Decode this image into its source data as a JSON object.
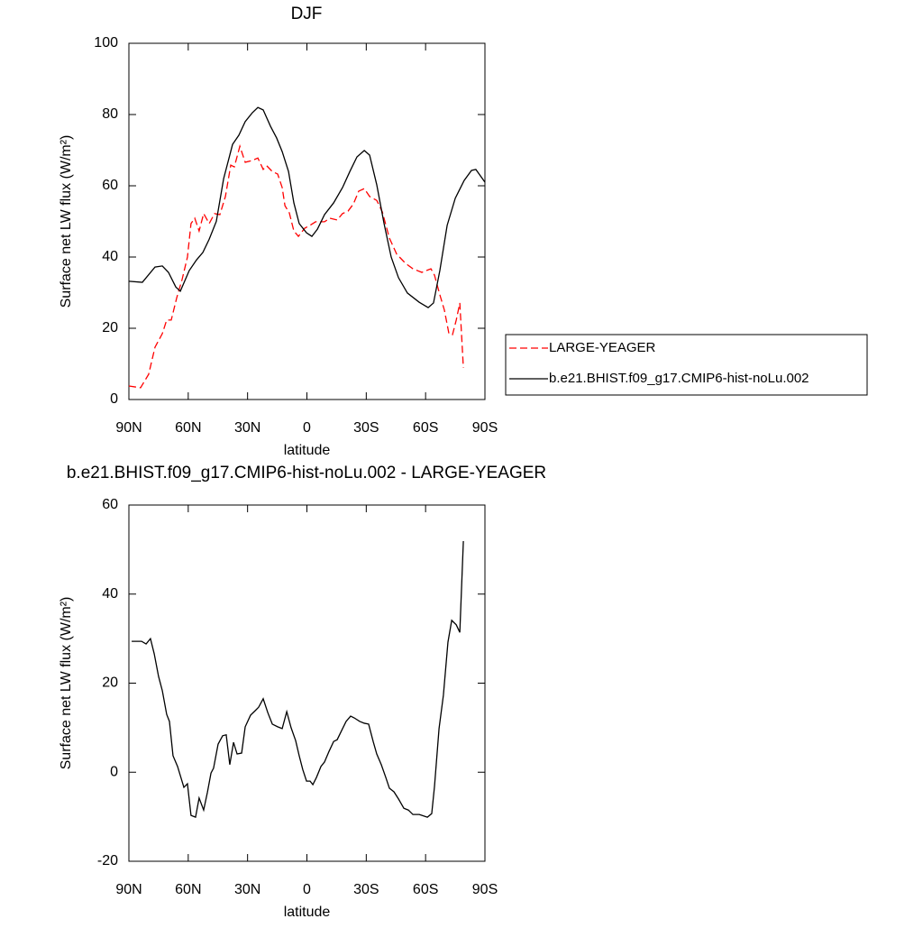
{
  "chart_data": [
    {
      "type": "line",
      "title": "DJF",
      "x_label": "latitude",
      "y_label": "Surface net LW flux (W/m²)",
      "xlim": [
        90,
        -90
      ],
      "xticks": [
        {
          "value": 90,
          "label": "90N"
        },
        {
          "value": 60,
          "label": "60N"
        },
        {
          "value": 30,
          "label": "30N"
        },
        0,
        {
          "value": -30,
          "label": "30S"
        },
        {
          "value": -60,
          "label": "60S"
        },
        {
          "value": -90,
          "label": "90S"
        }
      ],
      "ylim": [
        0,
        100
      ],
      "yticks": [
        0,
        20,
        40,
        60,
        80,
        100
      ],
      "legend": "right",
      "series": [
        {
          "name": "LARGE-YEAGER",
          "color": "#ff0000",
          "style": "dashed",
          "x": [
            90,
            84.1,
            80,
            76.8,
            73.1,
            70.9,
            68.6,
            65.8,
            63.1,
            60.4,
            58.6,
            56.7,
            54.5,
            52.2,
            49.4,
            46.7,
            44,
            41.2,
            38.5,
            36.7,
            33.9,
            31.2,
            27.6,
            24.8,
            22.1,
            20.3,
            17.5,
            14.8,
            12.5,
            11.1,
            8.9,
            6.6,
            4.3,
            1.1,
            -1.6,
            -4.4,
            -8.9,
            -11.6,
            -15.3,
            -18,
            -20.8,
            -23.5,
            -26.2,
            -29,
            -31.7,
            -35.3,
            -38.1,
            -41.7,
            -45.4,
            -49.9,
            -53.6,
            -58.1,
            -62.7,
            -64.5,
            -67.2,
            -69.5,
            -71.8,
            -73.6,
            -75.5,
            -77.3,
            -79.1
          ],
          "values": [
            3.8,
            3.3,
            7.1,
            14.7,
            18.5,
            22.3,
            22.3,
            28.6,
            33.7,
            40,
            49.4,
            50.9,
            47.3,
            52.2,
            49.4,
            52.2,
            51.9,
            57,
            65.8,
            65.3,
            71.1,
            66.6,
            67.1,
            67.8,
            64.6,
            65.6,
            64,
            63.3,
            59.5,
            54.4,
            52.4,
            47.3,
            45.8,
            48.1,
            48.9,
            49.9,
            49.9,
            50.9,
            50.4,
            52.2,
            52.9,
            54.9,
            58.5,
            59.2,
            57,
            55.9,
            52.7,
            45.3,
            40.8,
            38.2,
            36.7,
            35.7,
            36.7,
            34.9,
            29.4,
            25.1,
            18.5,
            18.2,
            22.3,
            27.1,
            8.9
          ]
        },
        {
          "name": "b.e21.BHIST.f09_g17.CMIP6-hist-noLu.002",
          "color": "#000000",
          "style": "solid",
          "x": [
            90,
            83.2,
            76.8,
            73.1,
            70,
            66.3,
            64,
            59.5,
            55.8,
            52.6,
            49.4,
            45.8,
            42.1,
            37.6,
            34.4,
            31.2,
            27.6,
            24.8,
            22.1,
            18.4,
            15.3,
            12.5,
            9.3,
            6.6,
            3.9,
            0.2,
            -2.5,
            -5.3,
            -8.9,
            -13.5,
            -18,
            -21.7,
            -25.3,
            -29,
            -31.7,
            -35.3,
            -39,
            -42.6,
            -46.3,
            -50.8,
            -56.8,
            -61.3,
            -64,
            -67.2,
            -70.9,
            -75,
            -79.5,
            -83.2,
            -85.4,
            -90
          ],
          "values": [
            33.2,
            32.9,
            37.2,
            37.5,
            35.7,
            31.6,
            30.4,
            36.2,
            39.2,
            41.3,
            45,
            50,
            62,
            71.6,
            74.2,
            78,
            80.5,
            82,
            81.3,
            76.7,
            73.4,
            69.6,
            64,
            55.2,
            49.4,
            46.8,
            45.8,
            47.8,
            51.9,
            55.2,
            59.5,
            64,
            68.1,
            69.9,
            68.6,
            60.3,
            49.4,
            40,
            34.2,
            29.9,
            27.3,
            25.8,
            27.1,
            36.2,
            48.9,
            56.5,
            61.5,
            64.3,
            64.6,
            61
          ]
        }
      ]
    },
    {
      "type": "line",
      "title": "b.e21.BHIST.f09_g17.CMIP6-hist-noLu.002 - LARGE-YEAGER",
      "x_label": "latitude",
      "y_label": "Surface net LW flux (W/m²)",
      "xlim": [
        90,
        -90
      ],
      "xticks": [
        {
          "value": 90,
          "label": "90N"
        },
        {
          "value": 60,
          "label": "60N"
        },
        {
          "value": 30,
          "label": "30N"
        },
        0,
        {
          "value": -30,
          "label": "30S"
        },
        {
          "value": -60,
          "label": "60S"
        },
        {
          "value": -90,
          "label": "90S"
        }
      ],
      "ylim": [
        -20,
        60
      ],
      "yticks": [
        -20,
        0,
        20,
        40,
        60
      ],
      "series": [
        {
          "color": "#000000",
          "style": "solid",
          "x": [
            88.6,
            83.6,
            81.3,
            79.1,
            77.2,
            75,
            73.1,
            70.9,
            69.5,
            67.7,
            65.4,
            62.2,
            60.4,
            58.6,
            56.3,
            54.5,
            52.2,
            50.3,
            48.5,
            47.2,
            44.9,
            42.6,
            40.8,
            39,
            37.1,
            35.3,
            33,
            31.2,
            28.5,
            26.2,
            24.4,
            22.1,
            19.8,
            17.5,
            14.8,
            12.5,
            10.2,
            8,
            5.7,
            3.9,
            2.1,
            0.2,
            -1.6,
            -3,
            -4.8,
            -7.1,
            -8.9,
            -11.2,
            -13.5,
            -15.3,
            -17.6,
            -19.8,
            -22.1,
            -23.9,
            -26.7,
            -29,
            -31.2,
            -33.5,
            -35.3,
            -37.6,
            -39.9,
            -41.7,
            -44,
            -46.3,
            -49,
            -51.3,
            -53.6,
            -56.8,
            -60.9,
            -63.1,
            -64.5,
            -66.8,
            -69,
            -71.3,
            -73.2,
            -75.5,
            -77.3,
            -79.1
          ],
          "values": [
            29.4,
            29.4,
            28.8,
            30,
            26.6,
            21.5,
            18.3,
            13,
            11.4,
            3.7,
            1.3,
            -3.4,
            -2.6,
            -9.7,
            -10.1,
            -5.8,
            -8.5,
            -4.5,
            -0.2,
            0.9,
            6.3,
            8.2,
            8.4,
            1.7,
            6.7,
            4.1,
            4.3,
            10.2,
            12.8,
            13.8,
            14.6,
            16.5,
            13.4,
            10.8,
            10.2,
            9.8,
            13.6,
            10,
            7.1,
            3.7,
            0.6,
            -2,
            -2,
            -2.8,
            -1.2,
            1.3,
            2.3,
            4.7,
            6.9,
            7.3,
            9.4,
            11.4,
            12.6,
            12.2,
            11.4,
            11,
            10.8,
            6.9,
            4.1,
            1.7,
            -1.2,
            -3.6,
            -4.4,
            -6,
            -8.1,
            -8.5,
            -9.5,
            -9.5,
            -10.1,
            -9.3,
            -3.2,
            9.8,
            17.3,
            29.2,
            34.1,
            33.1,
            31.4,
            51.9
          ]
        }
      ]
    }
  ]
}
